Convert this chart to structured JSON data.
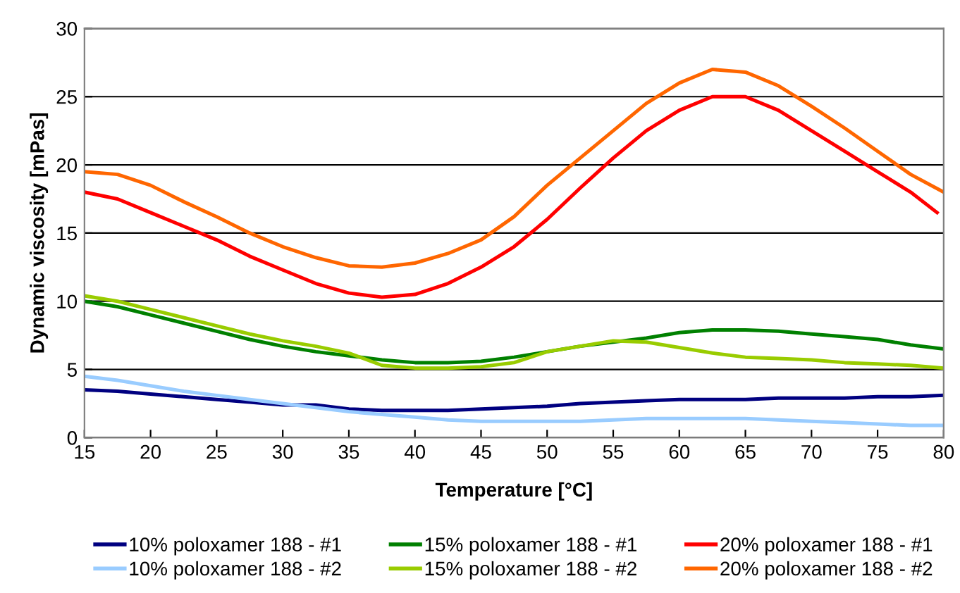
{
  "chart_data": {
    "type": "line",
    "xlabel": "Temperature [°C]",
    "ylabel": "Dynamic viscosity [mPas]",
    "x": [
      15,
      17.5,
      20,
      22.5,
      25,
      27.5,
      30,
      32.5,
      35,
      37.5,
      40,
      42.5,
      45,
      47.5,
      50,
      52.5,
      55,
      57.5,
      60,
      62.5,
      65,
      67.5,
      70,
      72.5,
      75,
      77.5,
      80
    ],
    "xlim": [
      15,
      80
    ],
    "xticks": [
      15,
      20,
      25,
      30,
      35,
      40,
      45,
      50,
      55,
      60,
      65,
      70,
      75,
      80
    ],
    "ylim": [
      0,
      30
    ],
    "yticks": [
      0,
      5,
      10,
      15,
      20,
      25,
      30
    ],
    "grid": "y",
    "legend": "bottom",
    "marker": "none",
    "line_style": "solid",
    "series": [
      {
        "name": "10% poloxamer 188 - #1",
        "color": "#000080",
        "values": [
          3.5,
          3.4,
          3.2,
          3,
          2.8,
          2.6,
          2.4,
          2.4,
          2.1,
          2,
          2,
          2,
          2.1,
          2.2,
          2.3,
          2.5,
          2.6,
          2.7,
          2.8,
          2.8,
          2.8,
          2.9,
          2.9,
          2.9,
          3,
          3,
          3.1
        ]
      },
      {
        "name": "10% poloxamer 188 - #2",
        "color": "#99ccff",
        "values": [
          4.5,
          4.2,
          3.8,
          3.4,
          3.1,
          2.8,
          2.5,
          2.2,
          1.9,
          1.7,
          1.5,
          1.3,
          1.2,
          1.2,
          1.2,
          1.2,
          1.3,
          1.4,
          1.4,
          1.4,
          1.4,
          1.3,
          1.2,
          1.1,
          1,
          0.9,
          0.9
        ]
      },
      {
        "name": "15% poloxamer 188 - #1",
        "color": "#008000",
        "values": [
          10,
          9.6,
          9,
          8.4,
          7.8,
          7.2,
          6.7,
          6.3,
          6,
          5.7,
          5.5,
          5.5,
          5.6,
          5.9,
          6.3,
          6.7,
          7,
          7.3,
          7.7,
          7.9,
          7.9,
          7.8,
          7.6,
          7.4,
          7.2,
          6.8,
          6.5
        ]
      },
      {
        "name": "15% poloxamer 188 - #2",
        "color": "#99cc00",
        "values": [
          10.4,
          10,
          9.4,
          8.8,
          8.2,
          7.6,
          7.1,
          6.7,
          6.2,
          5.3,
          5.1,
          5.1,
          5.2,
          5.5,
          6.3,
          6.7,
          7.1,
          7,
          6.6,
          6.2,
          5.9,
          5.8,
          5.7,
          5.5,
          5.4,
          5.3,
          5.1
        ]
      },
      {
        "name": "20% poloxamer 188 - #1",
        "color": "#ff0000",
        "x": [
          15,
          17.5,
          20,
          22.5,
          25,
          27.5,
          30,
          32.5,
          35,
          37.5,
          40,
          42.5,
          45,
          47.5,
          50,
          52.5,
          55,
          57.5,
          60,
          62.5,
          65,
          67.5,
          70,
          72.5,
          75,
          77.5,
          79.5
        ],
        "values": [
          18,
          17.5,
          16.5,
          15.5,
          14.5,
          13.3,
          12.3,
          11.3,
          10.6,
          10.3,
          10.5,
          11.3,
          12.5,
          14,
          16,
          18.3,
          20.5,
          22.5,
          24,
          25,
          25,
          24,
          22.5,
          21,
          19.5,
          18,
          16.5
        ]
      },
      {
        "name": "20% poloxamer 188 - #2",
        "color": "#ff6600",
        "values": [
          19.5,
          19.3,
          18.5,
          17.3,
          16.2,
          15,
          14,
          13.2,
          12.6,
          12.5,
          12.8,
          13.5,
          14.5,
          16.2,
          18.5,
          20.5,
          22.5,
          24.5,
          26,
          27,
          26.8,
          25.8,
          24.3,
          22.7,
          21,
          19.3,
          18
        ]
      }
    ]
  }
}
